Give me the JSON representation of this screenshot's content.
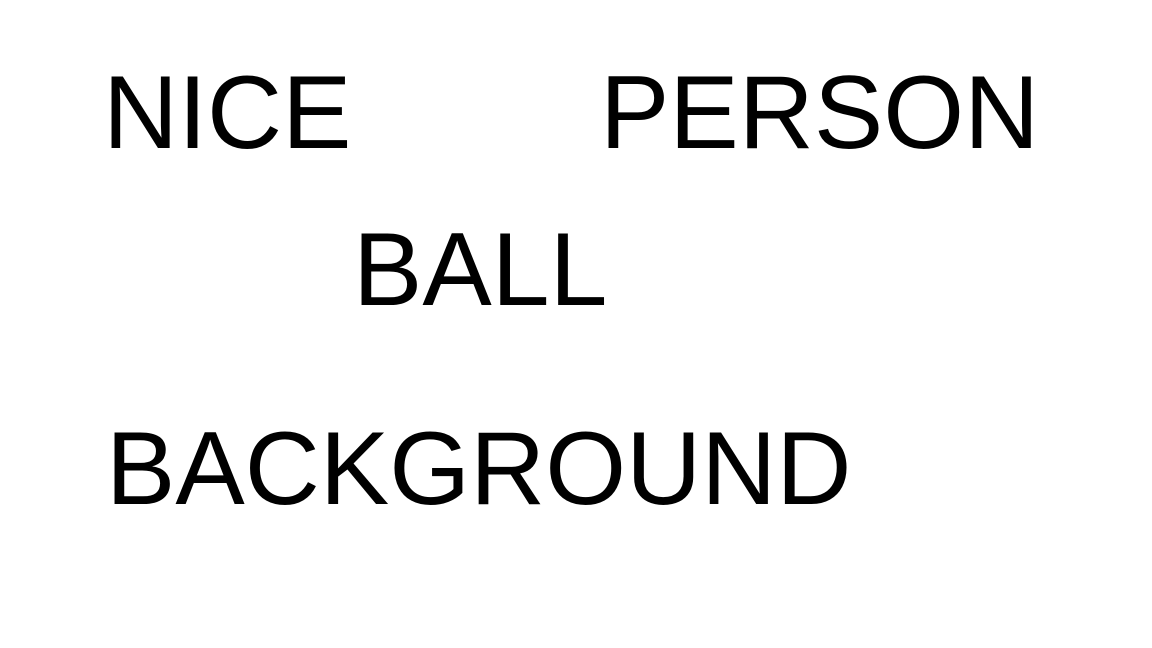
{
  "words": {
    "nice": "NICE",
    "person": "PERSON",
    "ball": "BALL",
    "background": "BACKGROUND"
  },
  "colors": {
    "background": "#ffffff",
    "text": "#000000"
  }
}
